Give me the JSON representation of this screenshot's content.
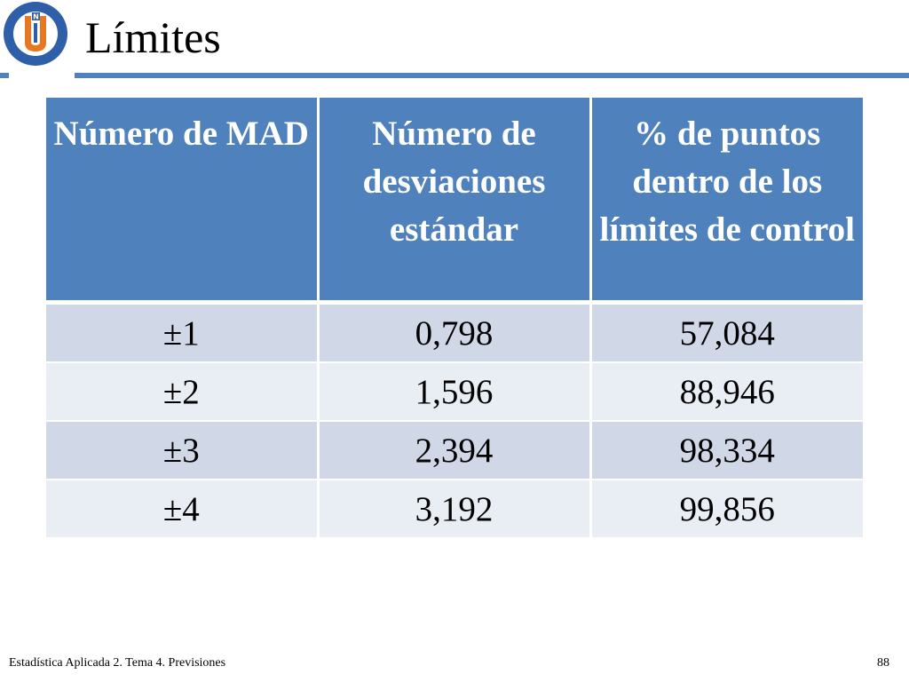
{
  "slide": {
    "title": "Límites",
    "logo": {
      "icon": "university-seal-icon",
      "ring_text": "UNIVERSIDAD CATÓLICA DEL NORTE",
      "bottom_text": "CHILE",
      "badge_letter": "N",
      "colors": {
        "ring": "#2f5fa8",
        "inner": "#e87722"
      }
    },
    "accent_color": "#4f81bd"
  },
  "table": {
    "headers": [
      "Número de MAD",
      "Número de desviaciones estándar",
      "% de puntos dentro de los límites de control"
    ],
    "rows": [
      [
        "±1",
        "0,798",
        "57,084"
      ],
      [
        "±2",
        "1,596",
        "88,946"
      ],
      [
        "±3",
        "2,394",
        "98,334"
      ],
      [
        "±4",
        "3,192",
        "99,856"
      ]
    ],
    "colors": {
      "header": "#4f81bd",
      "row_odd": "#d0d8e8",
      "row_even": "#e9edf4"
    }
  },
  "footer": {
    "course": "Estadística Aplicada 2. Tema 4. Previsiones",
    "page_number": "88"
  }
}
